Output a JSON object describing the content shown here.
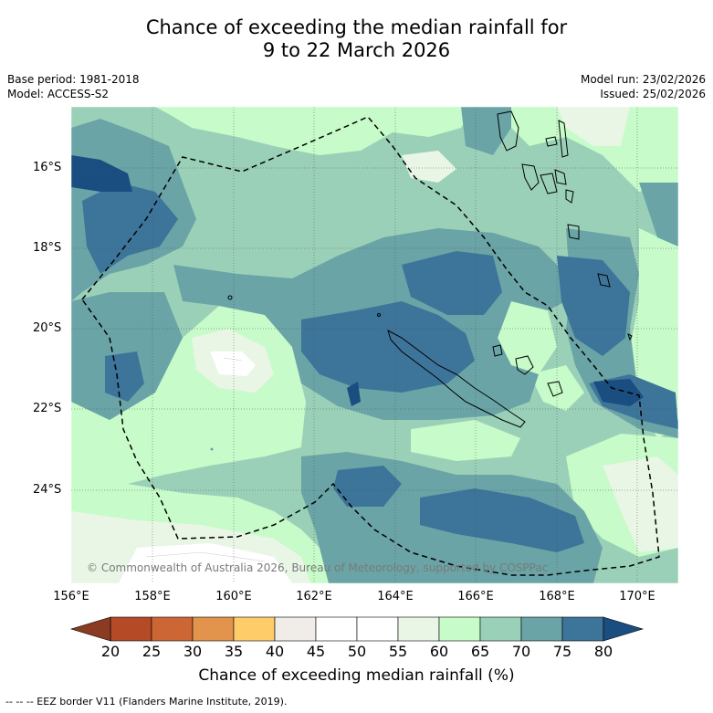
{
  "title": {
    "line1": "Chance of exceeding the median rainfall for",
    "line2": "9 to 22 March 2026"
  },
  "meta": {
    "base_period": "Base period: 1981-2018",
    "model": "Model: ACCESS-S2",
    "model_run": "Model run: 23/02/2026",
    "issued": "Issued: 25/02/2026"
  },
  "map": {
    "copyright": "© Commonwealth of Australia 2026, Bureau of Meteorology, supported by COSPPac",
    "lat_labels": [
      "16°S",
      "18°S",
      "20°S",
      "22°S",
      "24°S"
    ],
    "lon_labels": [
      "156°E",
      "158°E",
      "160°E",
      "162°E",
      "164°E",
      "166°E",
      "168°E",
      "170°E"
    ],
    "lat_range": [
      -26,
      -14.8
    ],
    "lon_range": [
      156,
      171
    ]
  },
  "colorbar": {
    "label": "Chance of exceeding median rainfall (%)",
    "ticks": [
      "20",
      "25",
      "30",
      "35",
      "40",
      "45",
      "50",
      "55",
      "60",
      "65",
      "70",
      "75",
      "80"
    ],
    "colors": [
      "#b44a26",
      "#cd6635",
      "#e3944c",
      "#fecd69",
      "#f0ece8",
      "#ffffff",
      "#ffffff",
      "#e9f6e6",
      "#c7fbc9",
      "#9bd0b8",
      "#6aa4a6",
      "#3d7499"
    ],
    "under_color": "#8a3b22",
    "over_color": "#1a4d80"
  },
  "footer": {
    "legend": "-- -- -- EEZ border V11 (Flanders Marine Institute, 2019)."
  }
}
